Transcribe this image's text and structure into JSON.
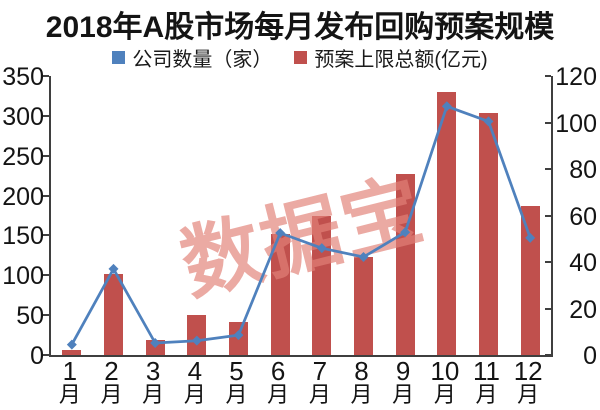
{
  "title": "2018年A股市场每月发布回购预案规模",
  "watermark": {
    "text": "数据宝",
    "color": "#e28279",
    "opacity": 0.68
  },
  "legend": [
    {
      "label": "公司数量（家）",
      "color": "#4f81bd"
    },
    {
      "label": "预案上限总额(亿元)",
      "color": "#c0504d"
    }
  ],
  "chart_data": {
    "type": "bar",
    "title": "2018年A股市场每月发布回购预案规模",
    "categories": [
      "1月",
      "2月",
      "3月",
      "4月",
      "5月",
      "6月",
      "7月",
      "8月",
      "9月",
      "10月",
      "11月",
      "12月"
    ],
    "series": [
      {
        "name": "公司数量（家）",
        "type": "line",
        "axis": "left",
        "color": "#4f81bd",
        "values": [
          13,
          108,
          15,
          18,
          25,
          153,
          134,
          123,
          154,
          312,
          293,
          147
        ]
      },
      {
        "name": "预案上限总额(亿元)",
        "type": "bar",
        "axis": "right",
        "color": "#c0504d",
        "values": [
          2,
          35,
          6.5,
          17,
          14,
          52,
          60,
          42,
          78,
          113,
          104,
          64
        ]
      }
    ],
    "left_axis": {
      "min": 0,
      "max": 350,
      "ticks": [
        0,
        50,
        100,
        150,
        200,
        250,
        300,
        350
      ]
    },
    "right_axis": {
      "min": 0,
      "max": 120,
      "ticks": [
        0,
        20,
        40,
        60,
        80,
        100,
        120
      ]
    },
    "grid": false,
    "legend_position": "top"
  }
}
